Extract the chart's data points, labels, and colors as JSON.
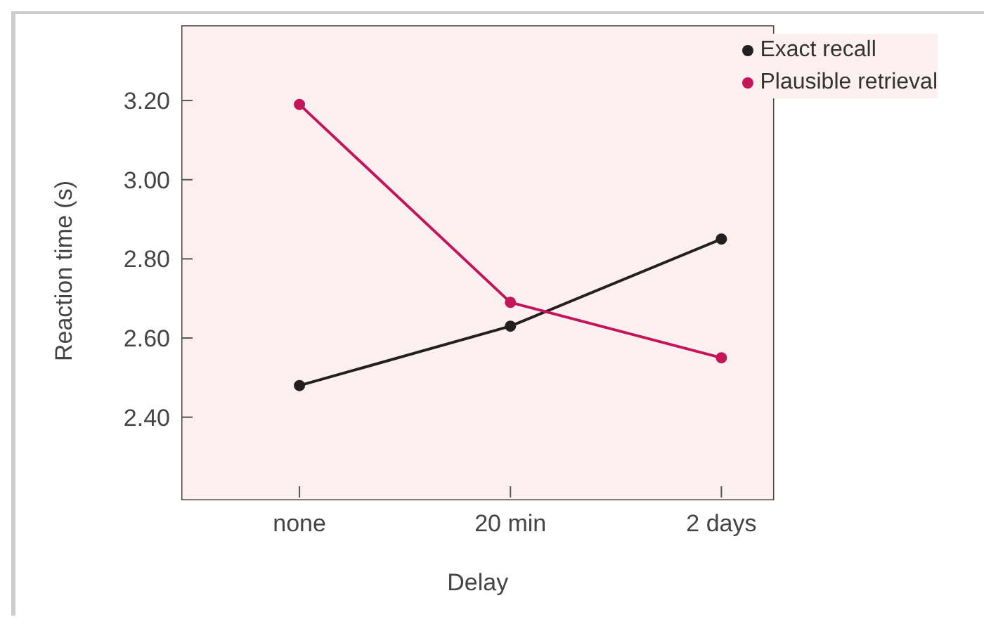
{
  "chart_data": {
    "type": "line",
    "xlabel": "Delay",
    "ylabel": "Reaction time (s)",
    "categories": [
      "none",
      "20 min",
      "2 days"
    ],
    "series": [
      {
        "name": "Exact recall",
        "color": "#231f20",
        "values": [
          2.48,
          2.63,
          2.85
        ]
      },
      {
        "name": "Plausible retrieval",
        "color": "#c4145a",
        "values": [
          3.19,
          2.69,
          2.55
        ]
      }
    ],
    "ylim": [
      2.19,
      3.39
    ],
    "yticks": [
      {
        "value": 2.4,
        "label": "2.40"
      },
      {
        "value": 2.6,
        "label": "2.60"
      },
      {
        "value": 2.8,
        "label": "2.80"
      },
      {
        "value": 3.0,
        "label": "3.00"
      },
      {
        "value": 3.2,
        "label": "3.20"
      }
    ],
    "grid": false,
    "legend": "top right",
    "marker": "circle",
    "line_style": "solid"
  }
}
